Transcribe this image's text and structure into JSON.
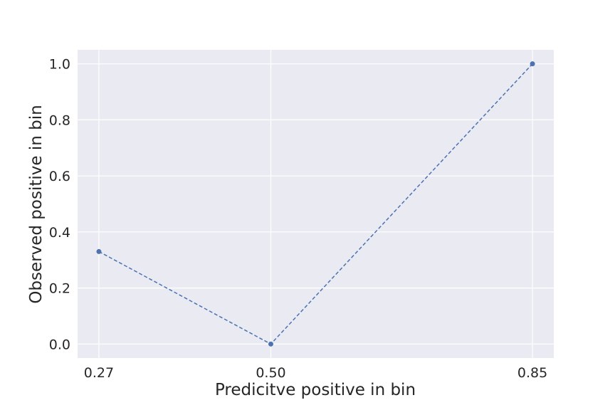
{
  "chart_data": {
    "type": "line",
    "title": "",
    "xlabel": "Predicitve positive in bin",
    "ylabel": "Observed positive in bin",
    "x": [
      0.27,
      0.5,
      0.85
    ],
    "series": [
      {
        "values": [
          0.33,
          0.0,
          1.0
        ]
      }
    ],
    "xticks": [
      "0.27",
      "0.50",
      "0.85"
    ],
    "yticks": [
      "0.0",
      "0.2",
      "0.4",
      "0.6",
      "0.8",
      "1.0"
    ],
    "xlim": [
      0.2415,
      0.8785
    ],
    "ylim": [
      -0.05,
      1.05
    ],
    "grid": true,
    "line_style": "dashed",
    "marker": "circle",
    "colors": {
      "background": "#eaeaf2",
      "grid": "#ffffff",
      "series": "#4c72b0",
      "text": "#262626"
    }
  }
}
